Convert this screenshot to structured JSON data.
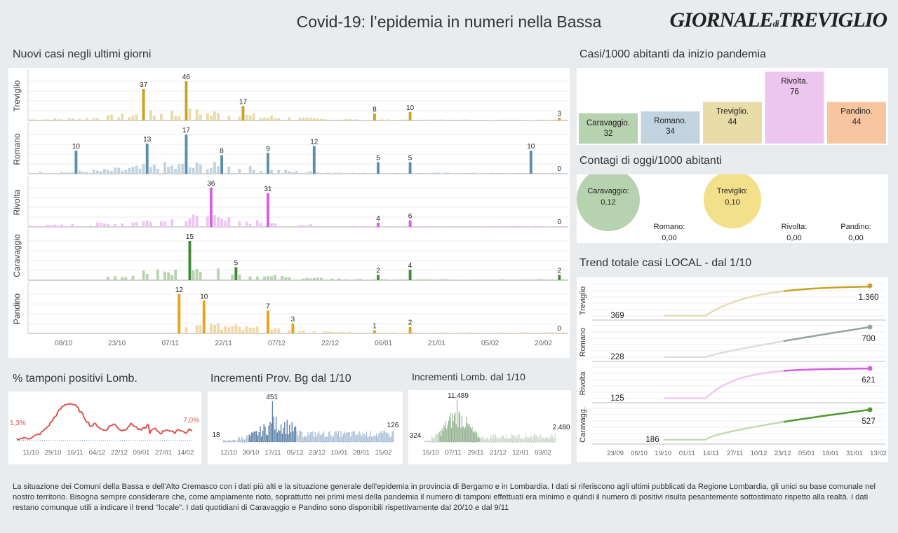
{
  "header": {
    "title": "Covid-19: l’epidemia  in numeri nella Bassa",
    "logo_main": "GIORNALE",
    "logo_di": "di",
    "logo_city": "TREVIGLIO"
  },
  "sections": {
    "new_cases": "Nuovi casi negli ultimi   giorni",
    "per1000": "Casi/1000 abitanti da inizio pandemia",
    "today": "Contagi di oggi/1000 abitanti",
    "trend": "Trend totale casi  LOCAL - dal 1/10",
    "tamponi": "% tamponi positivi Lomb.",
    "prov_bg": "Incrementi Prov. Bg dal 1/10",
    "lomb": "Incrementi Lomb. dal 1/10"
  },
  "colors": {
    "treviglio": "#c9a227",
    "treviglio_light": "#e8dca8",
    "romano": "#5b8db0",
    "romano_light": "#c2d3e0",
    "rivolta": "#d45fe0",
    "rivolta_light": "#ecc6ef",
    "caravaggio": "#3f8a3a",
    "caravaggio_light": "#b6d2ae",
    "pandino": "#e8a317",
    "pandino_light": "#f1d9a6",
    "red": "#d9534f",
    "bg": "#5a7fa8",
    "lomb": "#8fae8a"
  },
  "chart_data": [
    {
      "type": "bar",
      "title": "Nuovi casi negli ultimi   giorni",
      "x_ticks": [
        "08/10",
        "23/10",
        "07/11",
        "22/11",
        "07/12",
        "22/12",
        "06/01",
        "21/01",
        "05/02",
        "20/02"
      ],
      "series": [
        {
          "name": "Treviglio",
          "max": 46,
          "annotations": [
            {
              "day": 32,
              "value": 37
            },
            {
              "day": 44,
              "value": 46
            },
            {
              "day": 60,
              "value": 17
            },
            {
              "day": 97,
              "value": 8
            },
            {
              "day": 107,
              "value": 10
            },
            {
              "day": 149,
              "value": 3
            }
          ]
        },
        {
          "name": "Romano",
          "max": 17,
          "annotations": [
            {
              "day": 13,
              "value": 10
            },
            {
              "day": 33,
              "value": 13
            },
            {
              "day": 44,
              "value": 17
            },
            {
              "day": 54,
              "value": 8
            },
            {
              "day": 67,
              "value": 9
            },
            {
              "day": 80,
              "value": 12
            },
            {
              "day": 98,
              "value": 5
            },
            {
              "day": 107,
              "value": 5
            },
            {
              "day": 141,
              "value": 10
            },
            {
              "day": 149,
              "value": 0
            }
          ]
        },
        {
          "name": "Rivolta",
          "max": 36,
          "annotations": [
            {
              "day": 51,
              "value": 36
            },
            {
              "day": 67,
              "value": 31
            },
            {
              "day": 98,
              "value": 4
            },
            {
              "day": 107,
              "value": 6
            },
            {
              "day": 149,
              "value": 0
            }
          ]
        },
        {
          "name": "Caravaggio",
          "max": 15,
          "annotations": [
            {
              "day": 45,
              "value": 15
            },
            {
              "day": 58,
              "value": 5
            },
            {
              "day": 98,
              "value": 2
            },
            {
              "day": 107,
              "value": 4
            },
            {
              "day": 149,
              "value": 2
            }
          ]
        },
        {
          "name": "Pandino",
          "max": 12,
          "annotations": [
            {
              "day": 42,
              "value": 12
            },
            {
              "day": 49,
              "value": 10
            },
            {
              "day": 67,
              "value": 7
            },
            {
              "day": 74,
              "value": 3
            },
            {
              "day": 97,
              "value": 1
            },
            {
              "day": 107,
              "value": 2
            },
            {
              "day": 149,
              "value": 0
            }
          ]
        }
      ]
    },
    {
      "type": "bar",
      "title": "Casi/1000 abitanti da inizio pandemia",
      "categories": [
        "Caravaggio.",
        "Romano.",
        "Treviglio.",
        "Rivolta.",
        "Pandino."
      ],
      "values": [
        32,
        34,
        44,
        76,
        44
      ]
    },
    {
      "type": "scatter",
      "title": "Contagi di oggi/1000 abitanti",
      "categories": [
        "Caravaggio:",
        "Treviglio:",
        "Romano:",
        "Rivolta:",
        "Pandino:"
      ],
      "values": [
        0.12,
        0.1,
        0.0,
        0.0,
        0.0
      ],
      "labels": [
        "0,12",
        "0,10",
        "0,00",
        "0,00",
        "0,00"
      ]
    },
    {
      "type": "line",
      "title": "Trend totale casi  LOCAL - dal 1/10",
      "x_ticks": [
        "23/09",
        "06/10",
        "19/10",
        "01/11",
        "14/11",
        "27/11",
        "10/12",
        "23/12",
        "05/01",
        "18/01",
        "31/01",
        "13/02"
      ],
      "series": [
        {
          "name": "Treviglio",
          "start": 369,
          "end": 1360,
          "start_label": "369",
          "end_label": "1.360"
        },
        {
          "name": "Romano",
          "start": 228,
          "end": 700,
          "start_label": "228",
          "end_label": "700"
        },
        {
          "name": "Rivolta",
          "start": 125,
          "end": 621,
          "start_label": "125",
          "end_label": "621"
        },
        {
          "name": "Caravagg.",
          "start": 186,
          "end": 527,
          "start_label": "186",
          "end_label": "527"
        }
      ]
    },
    {
      "type": "line",
      "title": "% tamponi positivi Lomb.",
      "x_ticks": [
        "11/10",
        "29/10",
        "16/11",
        "04/12",
        "22/12",
        "09/01",
        "27/01",
        "14/02"
      ],
      "start_label": "1,3%",
      "end_label": "7,0%",
      "start": 1.3,
      "end": 7.0
    },
    {
      "type": "bar",
      "title": "Incrementi Prov. Bg dal 1/10",
      "x_ticks": [
        "12/10",
        "30/10",
        "17/11",
        "05/12",
        "23/12",
        "10/01",
        "28/01",
        "15/02"
      ],
      "start_label": "18",
      "peak_label": "451",
      "end_label": "126",
      "start": 18,
      "peak": 451,
      "end": 126
    },
    {
      "type": "bar",
      "title": "Incrementi Lomb. dal 1/10",
      "x_ticks": [
        "16/10",
        "07/11",
        "29/11",
        "21/12",
        "12/01",
        "03/02"
      ],
      "start_label": "324",
      "peak_label": "11.489",
      "end_label": "2.480",
      "start": 324,
      "peak": 11489,
      "end": 2480
    }
  ],
  "footer": {
    "text": "La situazione dei Comuni della Bassa e dell'Alto Cremasco con i dati più alti e la situazione generale dell'epidemia in provincia di Bergamo e in Lombardia.  I dati si riferiscono agli ultimi pubblicati da Regione Lombardia, gli unici su base comunale nel  nostro territorio.  Bisogna sempre considerare che, come ampiamente noto, soprattutto nei primi mesi della pandemia il numero di tamponi effettuati era minimo e quindi il numero di positivi risulta pesantemente sottostimato rispetto alla realtà. I dati restano comunque utili a indicare il trend \"locale\".  I dati quotidiani di Caravaggio e Pandino sono disponibili rispettivamente dal 20/10 e dal 9/11"
  }
}
